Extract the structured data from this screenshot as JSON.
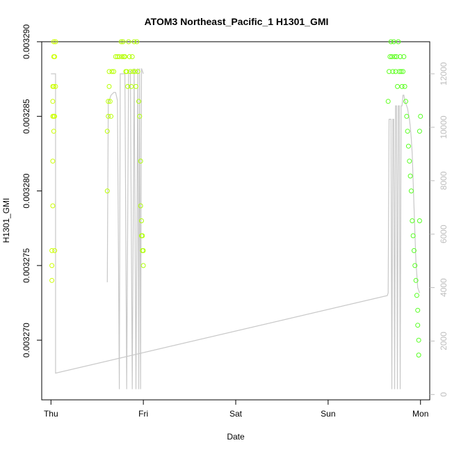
{
  "chart_data": {
    "type": "scatter",
    "title": "ATOM3 Northeast_Pacific_1 H1301_GMI",
    "xlabel": "Date",
    "ylabel": "H1301_GMI",
    "x_ticks": [
      "Thu",
      "Fri",
      "Sat",
      "Sun",
      "Mon"
    ],
    "x_range_days": [
      -0.1,
      4.1
    ],
    "y_left": {
      "range": [
        0.003266,
        0.00329
      ],
      "ticks": [
        0.00327,
        0.003275,
        0.00328,
        0.003285,
        0.00329
      ],
      "tick_labels": [
        "0.003270",
        "0.003275",
        "0.003280",
        "0.003285",
        "0.003290"
      ]
    },
    "y_right": {
      "range": [
        -200,
        13200
      ],
      "ticks": [
        0,
        2000,
        4000,
        6000,
        8000,
        10000,
        12000
      ],
      "tick_labels": [
        "0",
        "2000",
        "4000",
        "6000",
        "8000",
        "10000",
        "12000"
      ],
      "color": "#bdbdbd"
    },
    "colors": {
      "altitude_line": "#c8c8c8",
      "point_early": "#ccff00",
      "point_late": "#55ff22",
      "axes": "#000000",
      "right_axis": "#bdbdbd"
    },
    "series": [
      {
        "kind": "points",
        "segment": "Thu",
        "x": [
          0.01,
          0.01,
          0.01,
          0.02,
          0.02,
          0.02,
          0.02,
          0.02,
          0.03,
          0.03,
          0.03,
          0.03,
          0.03,
          0.04,
          0.04,
          0.04,
          0.05,
          0.05
        ],
        "y": [
          0.003274,
          0.003275,
          0.003276,
          0.003279,
          0.003282,
          0.003285,
          0.003286,
          0.003287,
          0.003284,
          0.003285,
          0.003287,
          0.003289,
          0.00329,
          0.003289,
          0.003285,
          0.003276,
          0.003287,
          0.00329
        ]
      },
      {
        "kind": "points",
        "segment": "Thu-Fri",
        "x": [
          0.61,
          0.61,
          0.62,
          0.62,
          0.63,
          0.63,
          0.64,
          0.65,
          0.66,
          0.68,
          0.7,
          0.72,
          0.74,
          0.76,
          0.77,
          0.78,
          0.79,
          0.8,
          0.81,
          0.82,
          0.83,
          0.84,
          0.85,
          0.86,
          0.87,
          0.88,
          0.89,
          0.9,
          0.91,
          0.92,
          0.93,
          0.94,
          0.95,
          0.96,
          0.97,
          0.97,
          0.98,
          0.98,
          0.99,
          0.99,
          1.0,
          1.0
        ],
        "y": [
          0.00328,
          0.003284,
          0.003285,
          0.003286,
          0.003287,
          0.003288,
          0.003286,
          0.003285,
          0.003288,
          0.003288,
          0.003289,
          0.003289,
          0.003289,
          0.00329,
          0.003289,
          0.00329,
          0.003289,
          0.003289,
          0.003288,
          0.003288,
          0.003287,
          0.00329,
          0.003289,
          0.003288,
          0.003287,
          0.003289,
          0.003288,
          0.00329,
          0.003288,
          0.003287,
          0.00329,
          0.003288,
          0.003286,
          0.003285,
          0.003282,
          0.003279,
          0.003278,
          0.003277,
          0.003277,
          0.003276,
          0.003276,
          0.003275
        ]
      },
      {
        "kind": "points",
        "segment": "Sun-Mon",
        "x": [
          3.65,
          3.66,
          3.67,
          3.68,
          3.69,
          3.7,
          3.71,
          3.72,
          3.73,
          3.74,
          3.75,
          3.76,
          3.77,
          3.78,
          3.79,
          3.8,
          3.81,
          3.82,
          3.83,
          3.84,
          3.85,
          3.86,
          3.87,
          3.88,
          3.89,
          3.9,
          3.91,
          3.92,
          3.93,
          3.94,
          3.95,
          3.96,
          3.97,
          3.97,
          3.98,
          3.98,
          3.99,
          3.99,
          4.0
        ],
        "y": [
          0.003286,
          0.003288,
          0.003289,
          0.00329,
          0.003289,
          0.003288,
          0.00329,
          0.003289,
          0.003288,
          0.003289,
          0.003287,
          0.00329,
          0.003288,
          0.003289,
          0.003288,
          0.003287,
          0.003288,
          0.003289,
          0.003287,
          0.003286,
          0.003285,
          0.003284,
          0.003283,
          0.003282,
          0.003281,
          0.00328,
          0.003278,
          0.003277,
          0.003276,
          0.003275,
          0.003274,
          0.003273,
          0.003272,
          0.003271,
          0.00327,
          0.003269,
          0.003278,
          0.003284,
          0.003285
        ]
      },
      {
        "kind": "line",
        "name": "altitude",
        "axis": "right",
        "x": [
          0.0,
          0.0,
          0.05,
          0.05,
          0.05,
          0.05,
          0.05,
          3.64,
          3.65,
          3.66,
          3.67,
          3.68,
          3.69,
          3.7,
          3.71,
          3.72,
          3.73,
          3.74,
          3.75,
          3.76,
          3.77,
          3.78,
          3.79,
          3.8,
          3.81,
          3.82,
          3.83,
          3.84,
          3.85,
          3.86,
          3.87,
          3.88,
          3.89,
          3.9,
          3.91,
          3.92,
          3.93,
          3.94,
          3.95,
          3.96,
          3.97,
          3.98,
          3.99
        ],
        "y": [
          12000,
          12000,
          12000,
          11900,
          7000,
          2000,
          800,
          3700,
          3800,
          10300,
          10300,
          10300,
          200,
          10300,
          10300,
          200,
          10800,
          10800,
          200,
          10800,
          10800,
          200,
          10800,
          10800,
          11200,
          11200,
          11000,
          10900,
          10800,
          10700,
          10500,
          10300,
          10000,
          9600,
          9000,
          8000,
          7000,
          6000,
          5000,
          4500,
          4000,
          3900,
          3800
        ]
      },
      {
        "kind": "line",
        "name": "altitude-segment",
        "axis": "right",
        "x": [
          0.61,
          0.62,
          0.65,
          0.68,
          0.7,
          0.72,
          0.74,
          0.75,
          0.78,
          0.8,
          0.82,
          0.84,
          0.86,
          0.88,
          0.9,
          0.92,
          0.94,
          0.95,
          0.96,
          0.97,
          0.98,
          0.99,
          1.0
        ],
        "y": [
          4200,
          10900,
          11200,
          11300,
          11300,
          11000,
          200,
          12000,
          12000,
          12000,
          200,
          12100,
          12100,
          200,
          12200,
          200,
          12200,
          200,
          12200,
          200,
          12200,
          12100,
          12000
        ]
      }
    ]
  }
}
